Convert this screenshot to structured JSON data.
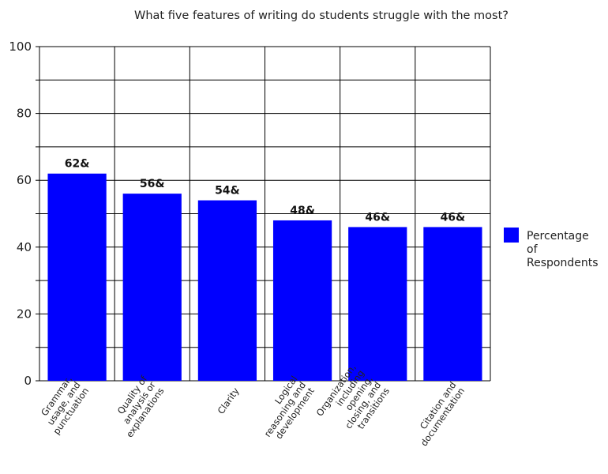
{
  "chart_data": {
    "type": "bar",
    "title": "What five features of writing do students struggle with the most?",
    "categories": [
      [
        "Grammar,",
        "usage, and",
        "punctuation"
      ],
      [
        "Quality of",
        "analysis or",
        "explanations"
      ],
      [
        "Clarity"
      ],
      [
        "Logical",
        "reasoning and",
        "development"
      ],
      [
        "Organization,",
        "including",
        "opening,",
        "closing, and",
        "transitions"
      ],
      [
        "Citation and",
        "documentation"
      ]
    ],
    "series": [
      {
        "name": "Percentage of Respondents",
        "values": [
          62,
          56,
          54,
          48,
          46,
          46
        ],
        "color": "#0000ff"
      }
    ],
    "data_labels": [
      "62&",
      "56&",
      "54&",
      "48&",
      "46&",
      "46&"
    ],
    "ylim": [
      0,
      100
    ],
    "yticks": [
      0,
      20,
      40,
      60,
      80,
      100
    ],
    "ygrid_step": 10,
    "grid": true,
    "legend_position": "right",
    "legend_lines": [
      "Percentage",
      "of",
      "Respondents"
    ],
    "xlabel": "",
    "ylabel": ""
  }
}
